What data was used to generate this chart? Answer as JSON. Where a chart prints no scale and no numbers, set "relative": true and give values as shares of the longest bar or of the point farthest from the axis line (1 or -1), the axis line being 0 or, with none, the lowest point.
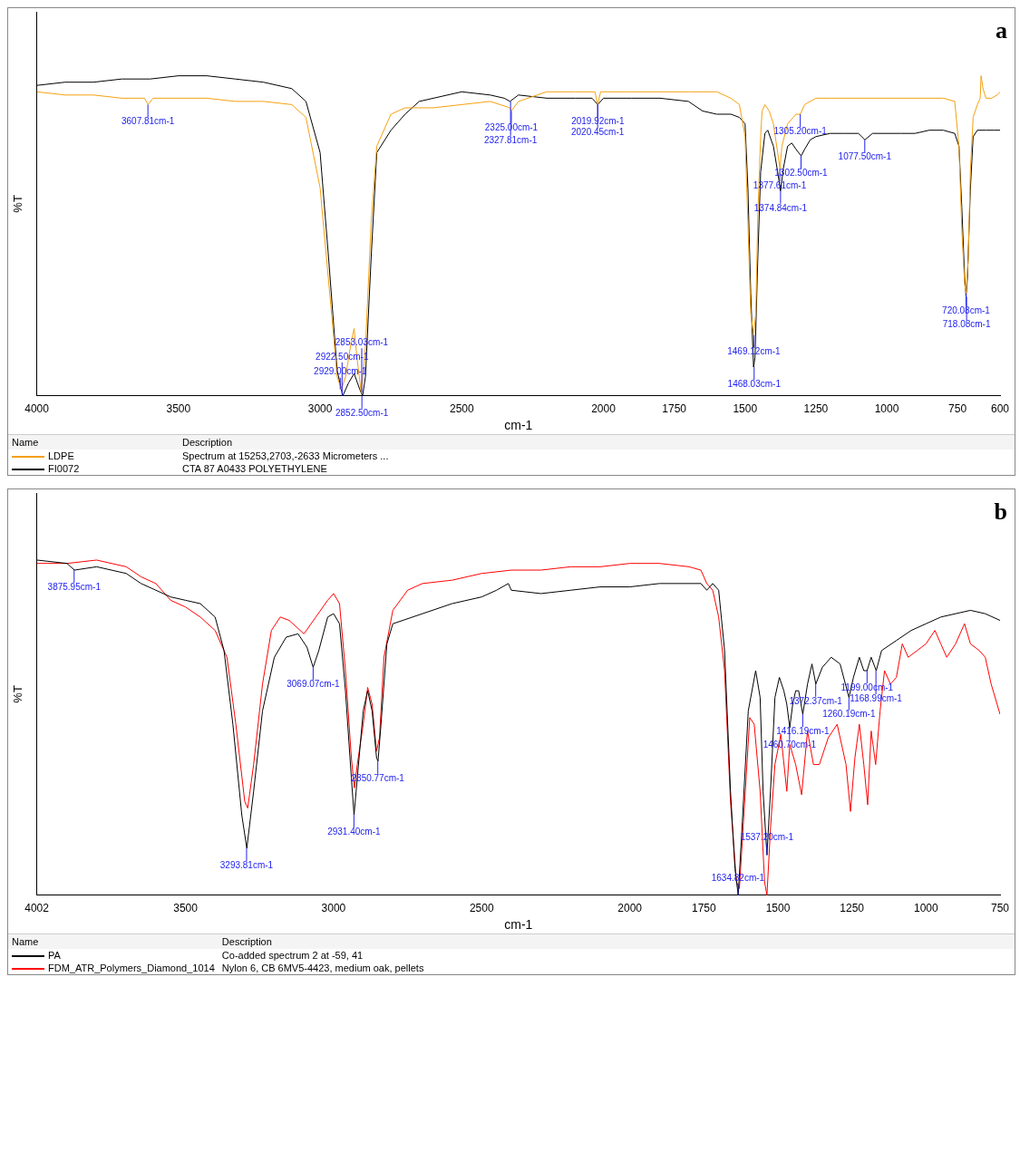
{
  "chart_data": [
    {
      "type": "line",
      "title": "a",
      "xlabel": "cm-1",
      "ylabel": "%T",
      "relative": true,
      "xlim": [
        4000,
        600
      ],
      "xticks": [
        4000,
        3500,
        3000,
        2500,
        2000,
        1750,
        1500,
        1250,
        1000,
        750,
        600
      ],
      "tick_labels": "x",
      "grid": false,
      "legend": "bottom",
      "marker": "none",
      "line_style": "solid",
      "series": [
        {
          "name": "LDPE",
          "color": "#f5a00f",
          "x": [
            4000,
            3900,
            3800,
            3700,
            3620,
            3607,
            3590,
            3500,
            3400,
            3300,
            3200,
            3100,
            3050,
            3000,
            2960,
            2940,
            2925,
            2910,
            2890,
            2880,
            2870,
            2855,
            2840,
            2820,
            2800,
            2750,
            2700,
            2600,
            2500,
            2400,
            2330,
            2325,
            2300,
            2200,
            2100,
            2030,
            2020,
            2010,
            1900,
            1800,
            1700,
            1600,
            1550,
            1520,
            1500,
            1490,
            1480,
            1470,
            1462,
            1455,
            1445,
            1440,
            1430,
            1415,
            1400,
            1385,
            1377,
            1370,
            1350,
            1320,
            1305,
            1290,
            1250,
            1200,
            1100,
            1000,
            900,
            800,
            760,
            745,
            735,
            725,
            720,
            712,
            705,
            695,
            680,
            670,
            667,
            660,
            650,
            630,
            610,
            600
          ],
          "values": [
            0.95,
            0.94,
            0.94,
            0.93,
            0.93,
            0.91,
            0.93,
            0.93,
            0.93,
            0.92,
            0.92,
            0.91,
            0.87,
            0.65,
            0.26,
            0.06,
            0.02,
            0.06,
            0.17,
            0.21,
            0.12,
            0.01,
            0.15,
            0.54,
            0.78,
            0.88,
            0.9,
            0.9,
            0.91,
            0.92,
            0.9,
            0.89,
            0.92,
            0.95,
            0.95,
            0.95,
            0.91,
            0.95,
            0.95,
            0.95,
            0.95,
            0.95,
            0.93,
            0.91,
            0.81,
            0.54,
            0.26,
            0.19,
            0.26,
            0.57,
            0.81,
            0.89,
            0.91,
            0.89,
            0.85,
            0.76,
            0.71,
            0.78,
            0.85,
            0.88,
            0.88,
            0.91,
            0.93,
            0.93,
            0.93,
            0.93,
            0.93,
            0.93,
            0.92,
            0.78,
            0.52,
            0.35,
            0.32,
            0.43,
            0.7,
            0.87,
            0.91,
            0.93,
            1.0,
            0.96,
            0.93,
            0.93,
            0.94,
            0.95
          ]
        },
        {
          "name": "FI0072",
          "color": "#000000",
          "x": [
            4000,
            3900,
            3800,
            3700,
            3600,
            3500,
            3400,
            3300,
            3200,
            3100,
            3050,
            3000,
            2970,
            2940,
            2920,
            2900,
            2880,
            2860,
            2850,
            2840,
            2820,
            2800,
            2750,
            2700,
            2650,
            2600,
            2500,
            2400,
            2350,
            2330,
            2300,
            2200,
            2100,
            2040,
            2020,
            2000,
            1900,
            1800,
            1700,
            1650,
            1600,
            1550,
            1520,
            1500,
            1490,
            1480,
            1470,
            1465,
            1455,
            1445,
            1430,
            1420,
            1400,
            1385,
            1375,
            1365,
            1350,
            1335,
            1320,
            1302,
            1290,
            1270,
            1250,
            1200,
            1150,
            1100,
            1077,
            1050,
            1000,
            950,
            900,
            850,
            800,
            760,
            745,
            735,
            725,
            720,
            715,
            705,
            695,
            680,
            650,
            620,
            600
          ],
          "values": [
            0.97,
            0.98,
            0.98,
            0.99,
            0.99,
            1.0,
            1.0,
            0.99,
            0.98,
            0.96,
            0.92,
            0.76,
            0.43,
            0.08,
            0.0,
            0.04,
            0.07,
            0.02,
            0.0,
            0.06,
            0.43,
            0.76,
            0.83,
            0.88,
            0.92,
            0.93,
            0.95,
            0.94,
            0.93,
            0.92,
            0.94,
            0.93,
            0.93,
            0.93,
            0.91,
            0.93,
            0.93,
            0.93,
            0.92,
            0.89,
            0.88,
            0.88,
            0.87,
            0.85,
            0.65,
            0.32,
            0.09,
            0.12,
            0.43,
            0.7,
            0.82,
            0.83,
            0.78,
            0.7,
            0.64,
            0.71,
            0.78,
            0.79,
            0.77,
            0.75,
            0.77,
            0.8,
            0.81,
            0.82,
            0.82,
            0.82,
            0.8,
            0.82,
            0.82,
            0.82,
            0.82,
            0.83,
            0.83,
            0.82,
            0.78,
            0.59,
            0.37,
            0.31,
            0.37,
            0.64,
            0.81,
            0.83,
            0.83,
            0.83,
            0.83
          ]
        }
      ],
      "annotations": [
        "Name",
        "Description",
        "Spectrum at 15253,2703,-2633 Micrometers ...",
        "CTA 87 A0433 POLYETHYLENE",
        {
          "text": "3607.81cm-1",
          "x": 3607.81,
          "y": 0.91
        },
        {
          "text": "2325.00cm-1",
          "x": 2325.0,
          "y": 0.89
        },
        {
          "text": "2327.81cm-1",
          "x": 2327.81,
          "y": 0.92
        },
        {
          "text": "2019.92cm-1",
          "x": 2019.92,
          "y": 0.91
        },
        {
          "text": "2020.45cm-1",
          "x": 2020.45,
          "y": 0.91
        },
        {
          "text": "1305.20cm-1",
          "x": 1305.2,
          "y": 0.88
        },
        {
          "text": "1377.61cm-1",
          "x": 1377.61,
          "y": 0.71
        },
        {
          "text": "1302.50cm-1",
          "x": 1302.5,
          "y": 0.75
        },
        {
          "text": "1077.50cm-1",
          "x": 1077.5,
          "y": 0.8
        },
        {
          "text": "1374.84cm-1",
          "x": 1374.84,
          "y": 0.64
        },
        {
          "text": "1469.12cm-1",
          "x": 1469.12,
          "y": 0.19
        },
        {
          "text": "1468.03cm-1",
          "x": 1468.03,
          "y": 0.09
        },
        {
          "text": "2929.00cm-1",
          "x": 2929.0,
          "y": 0.02
        },
        {
          "text": "2922.50cm-1",
          "x": 2922.5,
          "y": 0.0
        },
        {
          "text": "2853.03cm-1",
          "x": 2853.03,
          "y": 0.01
        },
        {
          "text": "2852.50cm-1",
          "x": 2852.5,
          "y": 0.0
        },
        {
          "text": "720.08cm-1",
          "x": 720.08,
          "y": 0.32
        },
        {
          "text": "718.08cm-1",
          "x": 718.08,
          "y": 0.31
        }
      ]
    },
    {
      "type": "line",
      "title": "b",
      "xlabel": "cm-1",
      "ylabel": "%T",
      "relative": true,
      "xlim": [
        4002,
        750
      ],
      "xticks": [
        4002,
        3500,
        3000,
        2500,
        2000,
        1750,
        1500,
        1250,
        1000,
        750
      ],
      "tick_labels": "x",
      "grid": false,
      "legend": "bottom",
      "marker": "none",
      "line_style": "solid",
      "series": [
        {
          "name": "PA",
          "color": "#000000",
          "x": [
            4002,
            3900,
            3875,
            3800,
            3700,
            3650,
            3600,
            3550,
            3500,
            3450,
            3400,
            3370,
            3340,
            3310,
            3293,
            3270,
            3240,
            3200,
            3160,
            3120,
            3090,
            3069,
            3050,
            3020,
            3000,
            2980,
            2960,
            2940,
            2931,
            2920,
            2900,
            2885,
            2870,
            2855,
            2850,
            2840,
            2820,
            2800,
            2700,
            2600,
            2500,
            2450,
            2410,
            2400,
            2300,
            2200,
            2100,
            2000,
            1900,
            1800,
            1760,
            1740,
            1720,
            1700,
            1680,
            1660,
            1645,
            1634,
            1620,
            1600,
            1575,
            1560,
            1550,
            1537,
            1525,
            1510,
            1495,
            1480,
            1470,
            1460,
            1450,
            1440,
            1430,
            1416,
            1400,
            1385,
            1372,
            1350,
            1320,
            1290,
            1260,
            1245,
            1225,
            1210,
            1199,
            1185,
            1168,
            1150,
            1100,
            1050,
            1000,
            950,
            900,
            850,
            800,
            750
          ],
          "values": [
            1.0,
            0.99,
            0.97,
            0.98,
            0.96,
            0.93,
            0.91,
            0.89,
            0.88,
            0.87,
            0.83,
            0.73,
            0.51,
            0.24,
            0.14,
            0.31,
            0.55,
            0.71,
            0.77,
            0.78,
            0.74,
            0.68,
            0.73,
            0.83,
            0.84,
            0.81,
            0.61,
            0.35,
            0.24,
            0.35,
            0.55,
            0.61,
            0.55,
            0.41,
            0.4,
            0.51,
            0.75,
            0.81,
            0.84,
            0.87,
            0.89,
            0.91,
            0.93,
            0.91,
            0.9,
            0.91,
            0.92,
            0.92,
            0.93,
            0.93,
            0.93,
            0.91,
            0.93,
            0.91,
            0.73,
            0.31,
            0.08,
            0.0,
            0.22,
            0.55,
            0.67,
            0.59,
            0.31,
            0.12,
            0.31,
            0.59,
            0.65,
            0.61,
            0.57,
            0.5,
            0.57,
            0.61,
            0.61,
            0.54,
            0.63,
            0.69,
            0.63,
            0.68,
            0.71,
            0.69,
            0.59,
            0.65,
            0.71,
            0.67,
            0.67,
            0.71,
            0.67,
            0.73,
            0.76,
            0.79,
            0.81,
            0.83,
            0.84,
            0.85,
            0.84,
            0.82
          ]
        },
        {
          "name": "FDM_ATR_Polymers_Diamond_1014",
          "color": "#ff0000",
          "x": [
            4002,
            3900,
            3800,
            3700,
            3650,
            3600,
            3550,
            3500,
            3450,
            3400,
            3360,
            3330,
            3300,
            3290,
            3270,
            3240,
            3210,
            3180,
            3150,
            3100,
            3060,
            3020,
            3000,
            2980,
            2960,
            2940,
            2930,
            2920,
            2900,
            2885,
            2870,
            2855,
            2845,
            2830,
            2800,
            2750,
            2700,
            2600,
            2500,
            2400,
            2300,
            2200,
            2100,
            2000,
            1900,
            1800,
            1760,
            1740,
            1720,
            1700,
            1680,
            1660,
            1640,
            1630,
            1610,
            1595,
            1580,
            1560,
            1545,
            1537,
            1525,
            1510,
            1490,
            1470,
            1460,
            1440,
            1420,
            1400,
            1380,
            1360,
            1330,
            1300,
            1270,
            1255,
            1240,
            1225,
            1210,
            1197,
            1185,
            1170,
            1155,
            1140,
            1120,
            1100,
            1080,
            1060,
            1030,
            1000,
            970,
            950,
            930,
            900,
            870,
            850,
            820,
            800,
            780,
            760,
            750
          ],
          "values": [
            0.99,
            0.99,
            1.0,
            0.98,
            0.95,
            0.93,
            0.88,
            0.86,
            0.83,
            0.79,
            0.71,
            0.51,
            0.28,
            0.26,
            0.39,
            0.63,
            0.79,
            0.83,
            0.82,
            0.78,
            0.83,
            0.88,
            0.9,
            0.87,
            0.67,
            0.41,
            0.32,
            0.39,
            0.51,
            0.62,
            0.57,
            0.43,
            0.47,
            0.71,
            0.85,
            0.91,
            0.93,
            0.94,
            0.96,
            0.97,
            0.97,
            0.98,
            0.98,
            0.99,
            0.99,
            0.98,
            0.97,
            0.93,
            0.91,
            0.83,
            0.67,
            0.28,
            0.04,
            0.02,
            0.31,
            0.53,
            0.51,
            0.31,
            0.04,
            0.0,
            0.2,
            0.39,
            0.48,
            0.31,
            0.45,
            0.39,
            0.3,
            0.49,
            0.39,
            0.39,
            0.47,
            0.51,
            0.39,
            0.25,
            0.41,
            0.51,
            0.39,
            0.27,
            0.49,
            0.39,
            0.55,
            0.67,
            0.63,
            0.65,
            0.75,
            0.71,
            0.73,
            0.75,
            0.79,
            0.75,
            0.71,
            0.75,
            0.81,
            0.75,
            0.73,
            0.71,
            0.63,
            0.57,
            0.54
          ]
        }
      ],
      "annotations": [
        "Name",
        "Description",
        "Co-added spectrum 2 at -59, 41",
        "Nylon 6, CB 6MV5-4423, medium oak, pellets",
        {
          "text": "3875.95cm-1",
          "x": 3875.95,
          "y": 0.97
        },
        {
          "text": "3069.07cm-1",
          "x": 3069.07,
          "y": 0.68
        },
        {
          "text": "2850.77cm-1",
          "x": 2850.77,
          "y": 0.4
        },
        {
          "text": "2931.40cm-1",
          "x": 2931.4,
          "y": 0.24
        },
        {
          "text": "3293.81cm-1",
          "x": 3293.81,
          "y": 0.14
        },
        {
          "text": "1634.82cm-1",
          "x": 1634.82,
          "y": 0.0
        },
        {
          "text": "1537.20cm-1",
          "x": 1537.2,
          "y": 0.12
        },
        {
          "text": "1460.70cm-1",
          "x": 1460.7,
          "y": 0.5
        },
        {
          "text": "1416.19cm-1",
          "x": 1416.19,
          "y": 0.54
        },
        {
          "text": "1372.37cm-1",
          "x": 1372.37,
          "y": 0.63
        },
        {
          "text": "1260.19cm-1",
          "x": 1260.19,
          "y": 0.59
        },
        {
          "text": "1199.00cm-1",
          "x": 1199.0,
          "y": 0.67
        },
        {
          "text": "1168.99cm-1",
          "x": 1168.99,
          "y": 0.67
        }
      ]
    }
  ]
}
